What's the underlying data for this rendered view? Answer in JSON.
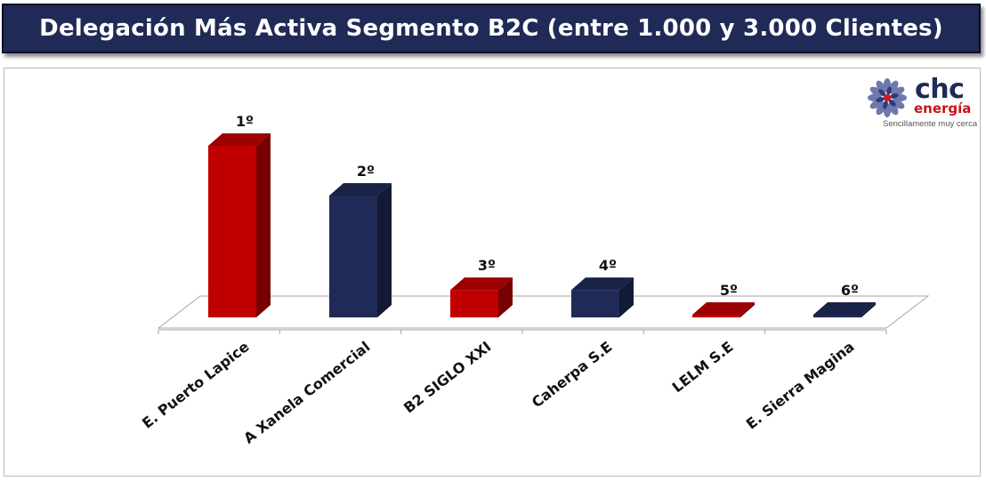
{
  "title": "Delegación Más Activa Segmento B2C (entre 1.000 y 3.000 Clientes)",
  "logo": {
    "brand": "chc",
    "sub": "energía",
    "tagline": "Sencillamente muy cerca"
  },
  "colors": {
    "title_bg": "#1f2a56",
    "red": "#c00000",
    "navy": "#1f2a56"
  },
  "chart_data": {
    "type": "bar",
    "style": "3d-column",
    "categories": [
      "E. Puerto Lapice",
      "A Xanela Comercial",
      "B2 SIGLO XXI",
      "Caherpa S.E",
      "LELM S.E",
      "E. Sierra Magina"
    ],
    "values": [
      100,
      71,
      16,
      16,
      1,
      1
    ],
    "data_labels": [
      "1º",
      "2º",
      "3º",
      "4º",
      "5º",
      "6º"
    ],
    "bar_colors": [
      "#c00000",
      "#1f2a56",
      "#c00000",
      "#1f2a56",
      "#c00000",
      "#1f2a56"
    ],
    "title": "",
    "xlabel": "",
    "ylabel": "",
    "ylim": [
      0,
      100
    ],
    "grid": false,
    "legend": "none"
  }
}
